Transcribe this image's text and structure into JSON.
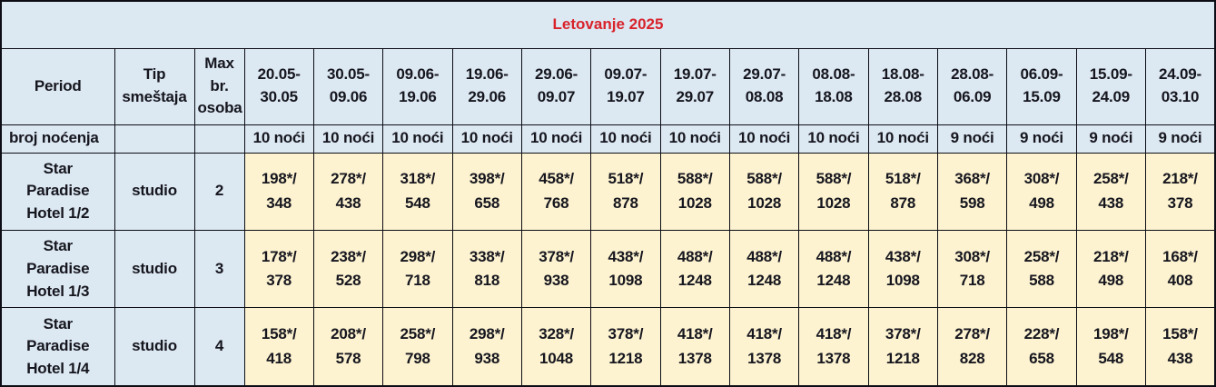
{
  "table": {
    "title": "Letovanje 2025",
    "colors": {
      "title_red": "#d9232b",
      "cell_blue": "#dce8f2",
      "price_cream": "#fdf3d1",
      "border": "#0d0d15",
      "text": "#16161e"
    },
    "header": {
      "period": "Period",
      "accommodation_type": "Tip smeštaja",
      "max_persons": "Max br. osoba",
      "dates": [
        "20.05-30.05",
        "30.05-09.06",
        "09.06-19.06",
        "19.06-29.06",
        "29.06-09.07",
        "09.07-19.07",
        "19.07-29.07",
        "29.07-08.08",
        "08.08-18.08",
        "18.08-28.08",
        "28.08-06.09",
        "06.09-15.09",
        "15.09-24.09",
        "24.09-03.10"
      ]
    },
    "nights_row": {
      "label": "broj noćenja",
      "values": [
        "10 noći",
        "10 noći",
        "10 noći",
        "10 noći",
        "10 noći",
        "10 noći",
        "10 noći",
        "10 noći",
        "10 noći",
        "10 noći",
        "9 noći",
        "9 noći",
        "9 noći",
        "9 noći"
      ]
    },
    "rows": [
      {
        "name_lines": [
          "Star",
          "Paradise",
          "Hotel 1/2"
        ],
        "accommodation_type": "studio",
        "max_persons": "2",
        "prices": [
          "198*/348",
          "278*/438",
          "318*/548",
          "398*/658",
          "458*/768",
          "518*/878",
          "588*/1028",
          "588*/1028",
          "588*/1028",
          "518*/878",
          "368*/598",
          "308*/498",
          "258*/438",
          "218*/378"
        ]
      },
      {
        "name_lines": [
          "Star",
          "Paradise",
          "Hotel 1/3"
        ],
        "accommodation_type": "studio",
        "max_persons": "3",
        "prices": [
          "178*/378",
          "238*/528",
          "298*/718",
          "338*/818",
          "378*/938",
          "438*/1098",
          "488*/1248",
          "488*/1248",
          "488*/1248",
          "438*/1098",
          "308*/718",
          "258*/588",
          "218*/498",
          "168*/408"
        ]
      },
      {
        "name_lines": [
          "Star",
          "Paradise",
          "Hotel 1/4"
        ],
        "accommodation_type": "studio",
        "max_persons": "4",
        "prices": [
          "158*/418",
          "208*/578",
          "258*/798",
          "298*/938",
          "328*/1048",
          "378*/1218",
          "418*/1378",
          "418*/1378",
          "418*/1378",
          "378*/1218",
          "278*/828",
          "228*/658",
          "198*/548",
          "158*/438"
        ]
      }
    ]
  }
}
